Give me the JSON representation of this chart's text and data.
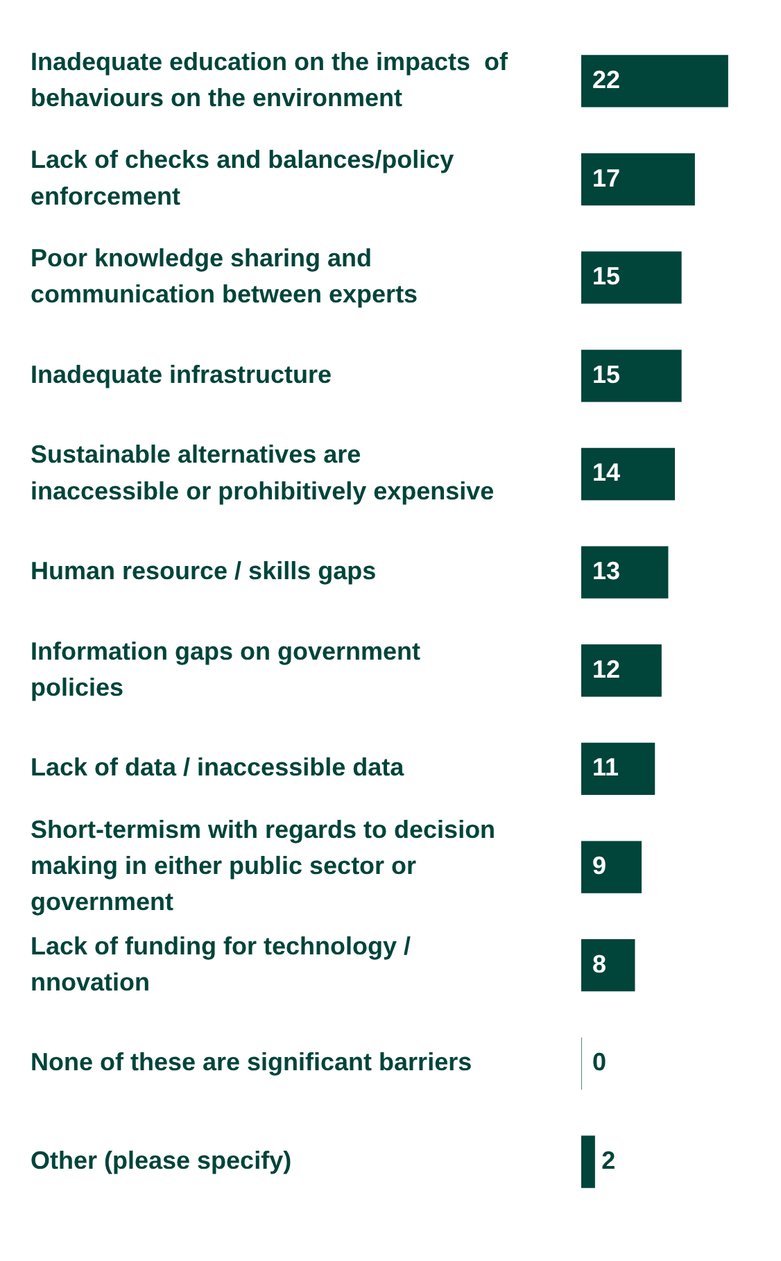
{
  "chart_data": {
    "type": "bar",
    "orientation": "horizontal",
    "categories": [
      "Inadequate education on the impacts  of behaviours on the environment",
      "Lack of checks and balances/policy enforcement",
      "Poor knowledge sharing and communication between experts",
      "Inadequate infrastructure",
      "Sustainable alternatives are inaccessible or prohibitively expensive",
      "Human resource / skills gaps",
      "Information gaps on government policies",
      "Lack of data / inaccessible data",
      "Short-termism with regards to decision making in either public sector or government",
      "Lack of funding for technology / nnovation",
      "None of these are significant barriers",
      "Other (please specify)"
    ],
    "values": [
      22,
      17,
      15,
      15,
      14,
      13,
      12,
      11,
      9,
      8,
      0,
      2
    ],
    "color": "#00443a",
    "data_labels": true,
    "grid": false,
    "legend": false
  }
}
